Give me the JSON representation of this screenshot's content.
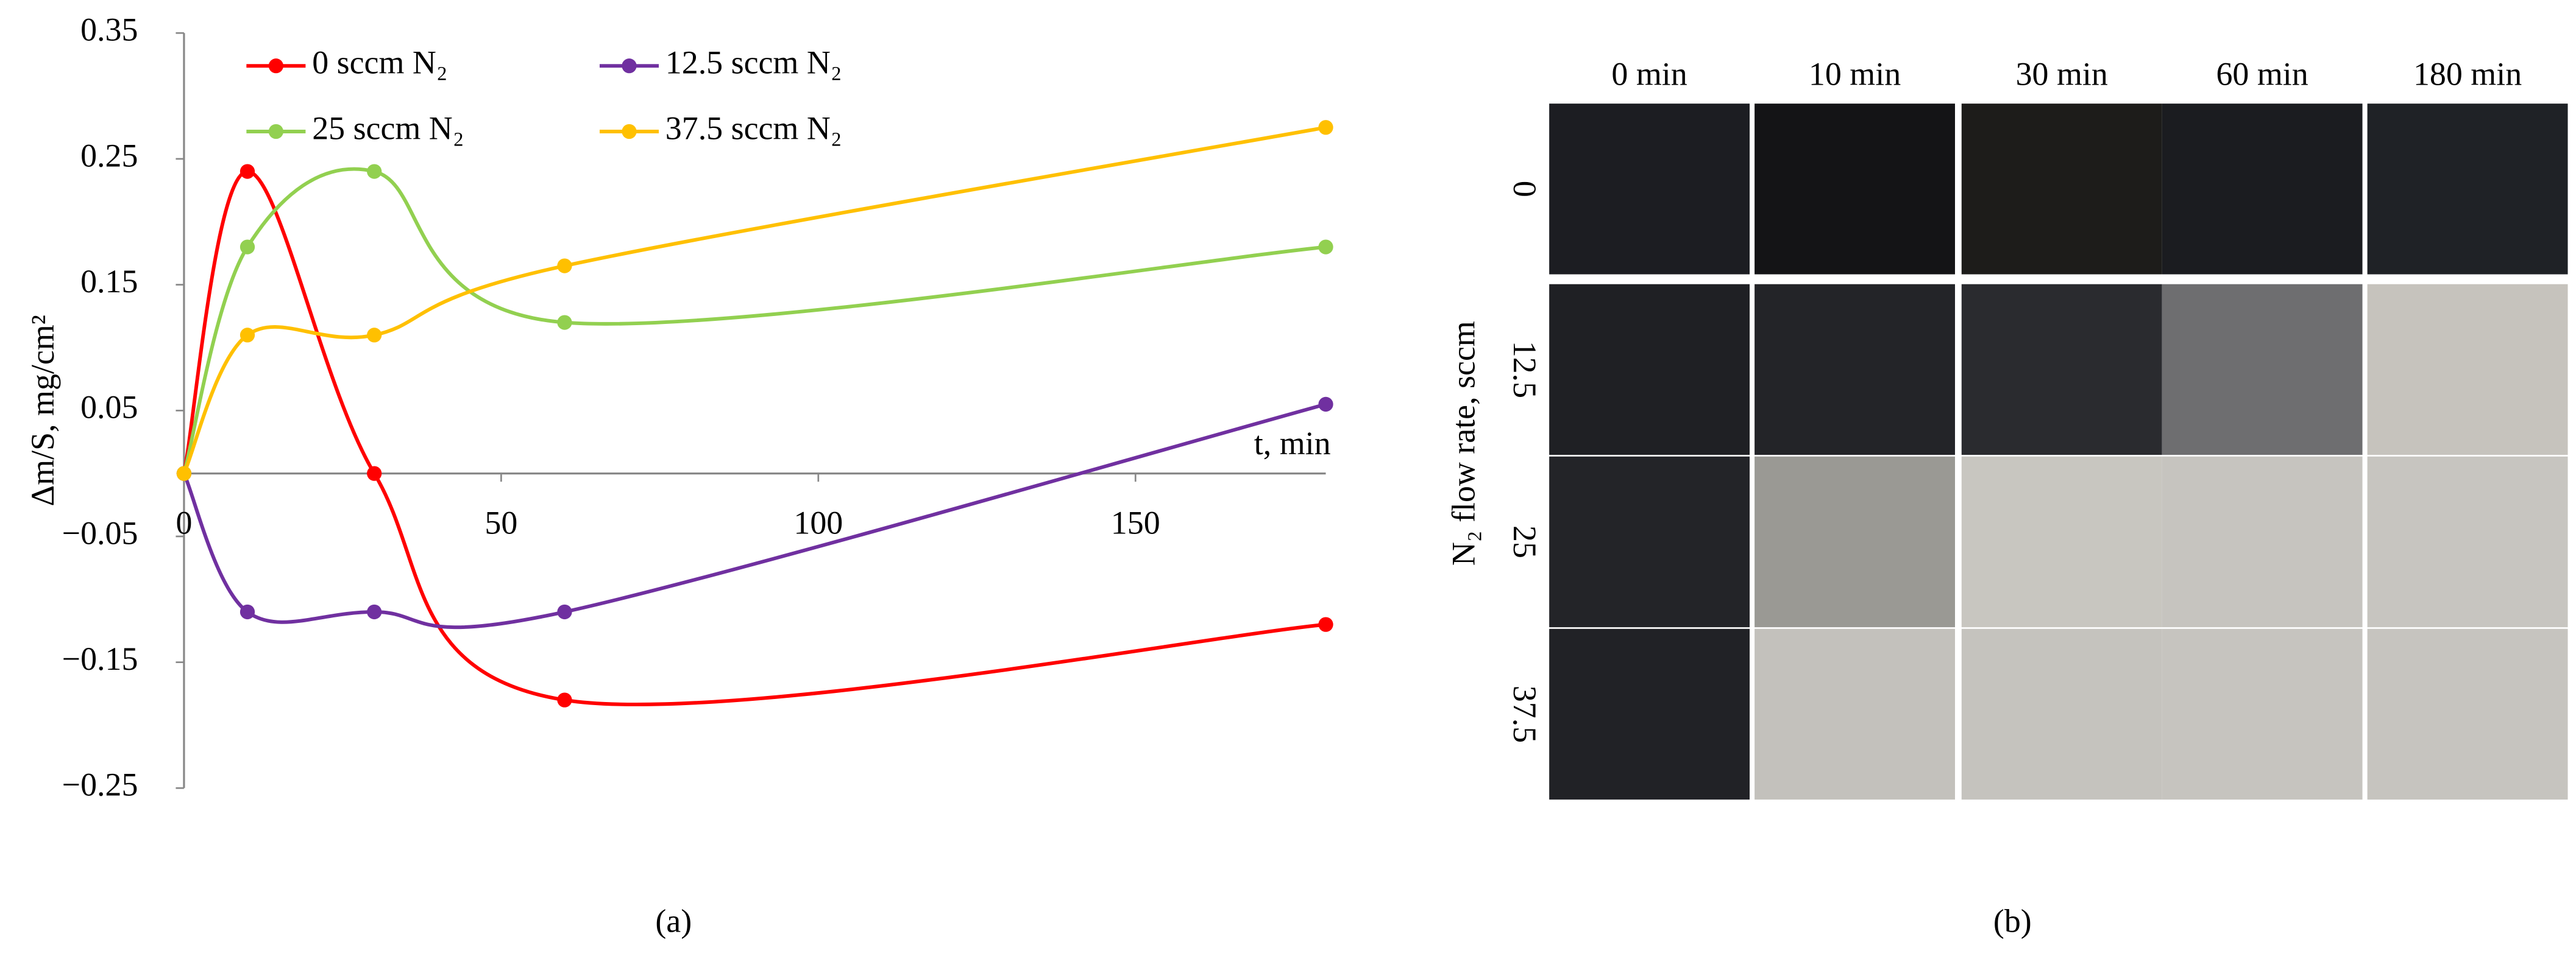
{
  "chart_data": {
    "type": "line",
    "x": [
      0,
      10,
      30,
      60,
      180
    ],
    "series": [
      {
        "name": "0 sccm  N₂",
        "color": "#ff0000",
        "values": [
          0,
          0.24,
          0,
          -0.18,
          -0.12
        ]
      },
      {
        "name": "12.5 sccm  N₂",
        "color": "#7030a0",
        "values": [
          0,
          -0.11,
          -0.11,
          -0.11,
          0.055
        ]
      },
      {
        "name": "25 sccm  N₂",
        "color": "#92d050",
        "values": [
          0,
          0.18,
          0.24,
          0.12,
          0.18
        ]
      },
      {
        "name": "37.5 sccm  N₂",
        "color": "#ffc000",
        "values": [
          0,
          0.11,
          0.11,
          0.165,
          0.275
        ]
      }
    ],
    "xlim": [
      0,
      180
    ],
    "xticks": [
      0,
      50,
      100,
      150
    ],
    "ylim": [
      -0.25,
      0.35
    ],
    "yticks": [
      {
        "value": -0.25,
        "label": "−0.25"
      },
      {
        "value": -0.15,
        "label": "−0.15"
      },
      {
        "value": -0.05,
        "label": "−0.05"
      },
      0.05,
      0.15,
      0.25,
      0.35
    ],
    "xlabel": "t, min",
    "ylabel": "Δm/S, mg/cm²",
    "grid": false
  },
  "photo_grid": {
    "columns": [
      "0 min",
      "10 min",
      "30 min",
      "60 min",
      "180 min"
    ],
    "rows": [
      "0",
      "12.5",
      "25",
      "37.5"
    ],
    "row_axis_label": "N₂ flow rate, sccm"
  },
  "panel_labels": [
    "(a)",
    "(b)"
  ]
}
